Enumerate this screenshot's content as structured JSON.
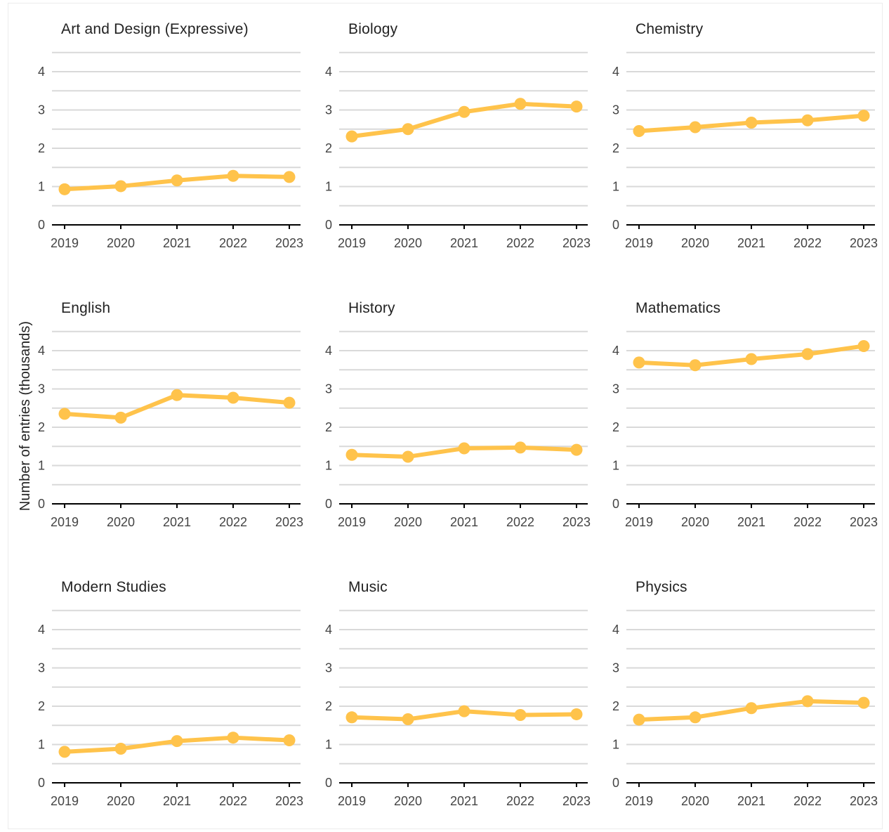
{
  "chart_data": {
    "type": "line",
    "ylabel": "Number of entries (thousands)",
    "x": [
      "2019",
      "2020",
      "2021",
      "2022",
      "2023"
    ],
    "ylim": [
      0,
      4.5
    ],
    "yticks": [
      0,
      1,
      2,
      3,
      4
    ],
    "color": "#FFC34B",
    "grid": true,
    "panels": [
      {
        "title": "Art and Design (Expressive)",
        "values": [
          0.93,
          1.01,
          1.16,
          1.28,
          1.25
        ]
      },
      {
        "title": "Biology",
        "values": [
          2.31,
          2.5,
          2.95,
          3.16,
          3.09
        ]
      },
      {
        "title": "Chemistry",
        "values": [
          2.45,
          2.55,
          2.67,
          2.73,
          2.85
        ]
      },
      {
        "title": "English",
        "values": [
          2.35,
          2.25,
          2.84,
          2.77,
          2.64
        ]
      },
      {
        "title": "History",
        "values": [
          1.28,
          1.23,
          1.45,
          1.47,
          1.41
        ]
      },
      {
        "title": "Mathematics",
        "values": [
          3.69,
          3.62,
          3.78,
          3.91,
          4.12
        ]
      },
      {
        "title": "Modern Studies",
        "values": [
          0.81,
          0.89,
          1.09,
          1.18,
          1.11
        ]
      },
      {
        "title": "Music",
        "values": [
          1.71,
          1.66,
          1.87,
          1.77,
          1.79
        ]
      },
      {
        "title": "Physics",
        "values": [
          1.65,
          1.71,
          1.95,
          2.13,
          2.09
        ]
      }
    ]
  }
}
